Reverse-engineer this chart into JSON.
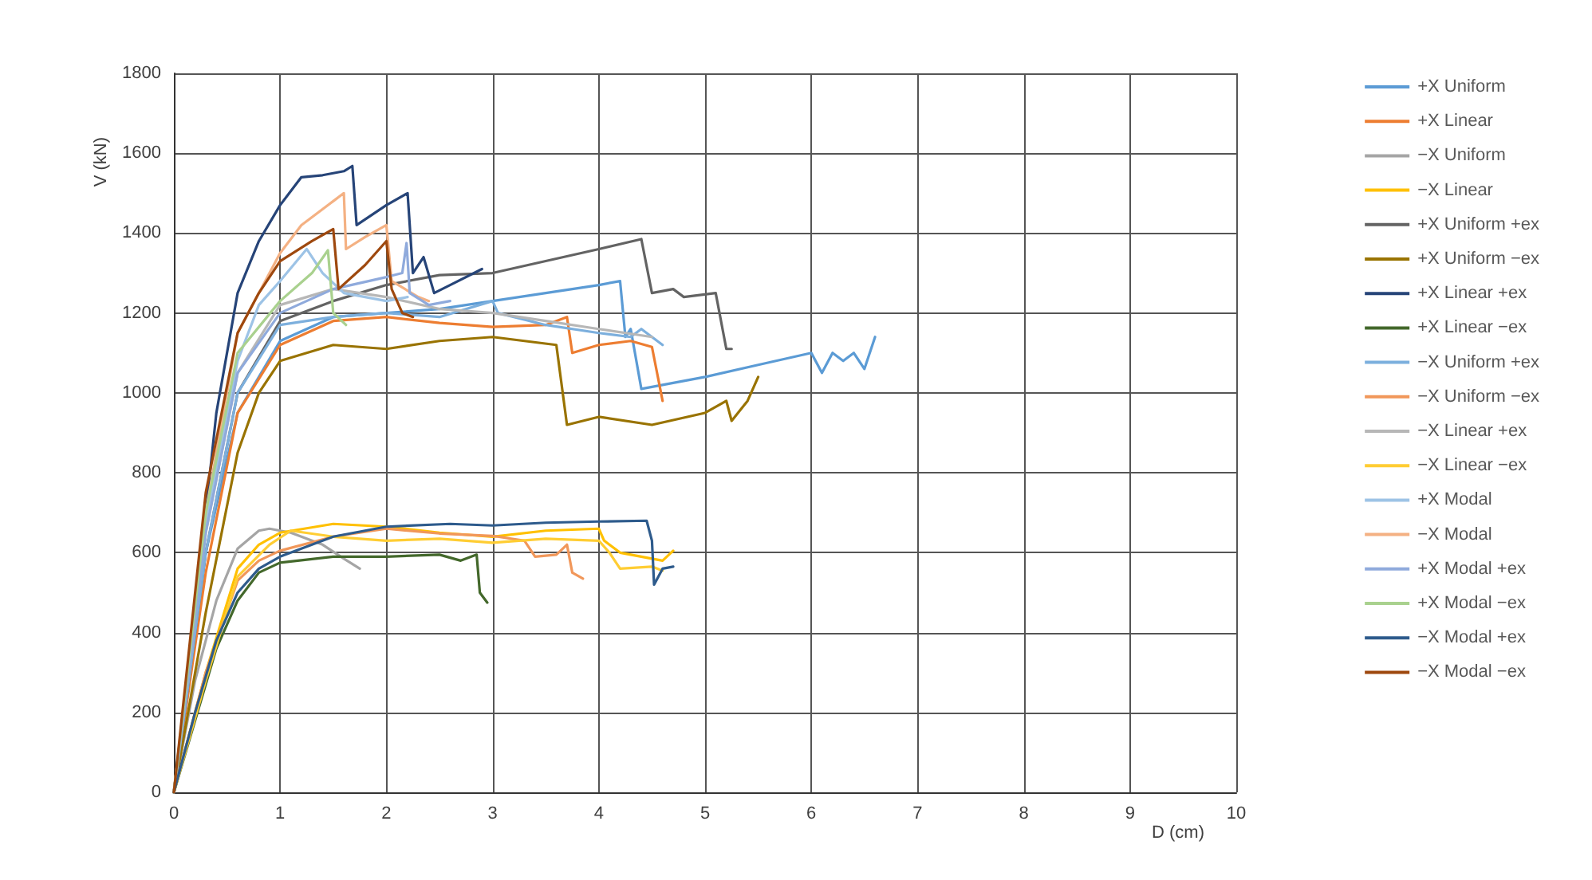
{
  "chart_data": {
    "type": "line",
    "xlabel": "D (cm)",
    "ylabel": "V (kN)",
    "xlim": [
      0,
      10
    ],
    "xticks": [
      0,
      1,
      2,
      3,
      4,
      5,
      6,
      7,
      8,
      9,
      10
    ],
    "ylim": [
      0,
      1800
    ],
    "yticks": [
      0,
      200,
      400,
      600,
      800,
      1000,
      1200,
      1400,
      1600,
      1800
    ],
    "grid": true,
    "legend": "right",
    "marker": "none",
    "line_style": "solid",
    "series": [
      {
        "name": "+X Uniform",
        "color": "#5b9bd5",
        "x": [
          0,
          0.3,
          0.6,
          1,
          1.5,
          2,
          2.5,
          3,
          3.5,
          4,
          4.2,
          4.25,
          4.3,
          4.4,
          5,
          5.5,
          6,
          6.1,
          6.2,
          6.3,
          6.4,
          6.5,
          6.6
        ],
        "values": [
          0,
          600,
          950,
          1130,
          1190,
          1200,
          1210,
          1230,
          1250,
          1270,
          1280,
          1140,
          1160,
          1010,
          1040,
          1070,
          1100,
          1050,
          1100,
          1080,
          1100,
          1060,
          1140
        ]
      },
      {
        "name": "+X Linear",
        "color": "#ed7d31",
        "x": [
          0,
          0.3,
          0.6,
          1,
          1.5,
          2,
          2.5,
          3,
          3.5,
          3.7,
          3.75,
          4,
          4.3,
          4.5,
          4.6
        ],
        "values": [
          0,
          550,
          950,
          1120,
          1180,
          1190,
          1175,
          1165,
          1170,
          1190,
          1100,
          1120,
          1130,
          1115,
          980
        ]
      },
      {
        "name": "−X Uniform",
        "color": "#a5a5a5",
        "x": [
          0,
          0.2,
          0.4,
          0.6,
          0.8,
          0.9,
          1.1,
          1.4,
          1.6,
          1.75
        ],
        "values": [
          0,
          280,
          480,
          610,
          655,
          660,
          650,
          620,
          585,
          560
        ]
      },
      {
        "name": "−X Linear",
        "color": "#ffc000",
        "x": [
          0,
          0.3,
          0.6,
          0.8,
          1,
          1.5,
          2,
          2.5,
          3,
          3.5,
          4,
          4.05,
          4.2,
          4.4,
          4.6,
          4.7
        ],
        "values": [
          0,
          300,
          560,
          620,
          650,
          672,
          665,
          650,
          640,
          655,
          660,
          630,
          600,
          590,
          580,
          605
        ]
      },
      {
        "name": "+X Uniform +ex",
        "color": "#636363",
        "x": [
          0,
          0.3,
          0.6,
          1,
          1.5,
          2,
          2.5,
          3,
          3.5,
          4,
          4.4,
          4.5,
          4.7,
          4.8,
          5.1,
          5.2,
          5.25
        ],
        "values": [
          0,
          600,
          1000,
          1180,
          1230,
          1270,
          1295,
          1300,
          1330,
          1360,
          1385,
          1250,
          1260,
          1240,
          1250,
          1110,
          1110
        ]
      },
      {
        "name": "+X Uniform −ex",
        "color": "#997300",
        "x": [
          0,
          0.3,
          0.6,
          0.8,
          1,
          1.5,
          2,
          2.5,
          3,
          3.3,
          3.6,
          3.7,
          4,
          4.5,
          5,
          5.2,
          5.25,
          5.4,
          5.5
        ],
        "values": [
          0,
          450,
          850,
          1000,
          1080,
          1120,
          1110,
          1130,
          1140,
          1130,
          1120,
          920,
          940,
          920,
          950,
          980,
          930,
          980,
          1040
        ]
      },
      {
        "name": "+X Linear +ex",
        "color": "#264478",
        "x": [
          0,
          0.2,
          0.4,
          0.6,
          0.8,
          1,
          1.2,
          1.4,
          1.6,
          1.68,
          1.72,
          2,
          2.2,
          2.25,
          2.35,
          2.45,
          2.6,
          2.9
        ],
        "values": [
          0,
          450,
          950,
          1250,
          1380,
          1470,
          1540,
          1545,
          1555,
          1568,
          1420,
          1470,
          1500,
          1300,
          1340,
          1250,
          1270,
          1310
        ]
      },
      {
        "name": "+X Linear −ex",
        "color": "#43682b",
        "x": [
          0,
          0.2,
          0.4,
          0.6,
          0.8,
          1,
          1.5,
          2,
          2.5,
          2.7,
          2.85,
          2.88,
          2.95
        ],
        "values": [
          0,
          180,
          360,
          480,
          550,
          575,
          590,
          590,
          595,
          580,
          595,
          500,
          475
        ]
      },
      {
        "name": "−X Uniform +ex",
        "color": "#7cafdd",
        "x": [
          0,
          0.3,
          0.6,
          1,
          1.5,
          2,
          2.5,
          3,
          3.05,
          3.5,
          4,
          4.3,
          4.4,
          4.6
        ],
        "values": [
          0,
          600,
          1000,
          1170,
          1190,
          1200,
          1190,
          1230,
          1200,
          1170,
          1150,
          1140,
          1160,
          1120
        ]
      },
      {
        "name": "−X Uniform −ex",
        "color": "#f1975a",
        "x": [
          0,
          0.3,
          0.6,
          0.8,
          1,
          1.5,
          2,
          2.5,
          3,
          3.3,
          3.4,
          3.6,
          3.7,
          3.75,
          3.85
        ],
        "values": [
          0,
          300,
          530,
          580,
          605,
          640,
          660,
          648,
          642,
          630,
          590,
          595,
          620,
          550,
          535
        ]
      },
      {
        "name": "−X Linear +ex",
        "color": "#b7b7b7",
        "x": [
          0,
          0.3,
          0.6,
          1,
          1.5,
          2,
          2.5,
          3,
          3.5,
          4,
          4.5
        ],
        "values": [
          0,
          650,
          1050,
          1220,
          1260,
          1240,
          1210,
          1200,
          1180,
          1160,
          1140
        ]
      },
      {
        "name": "−X Linear −ex",
        "color": "#ffcd33",
        "x": [
          0,
          0.3,
          0.6,
          0.9,
          1.1,
          1.5,
          2,
          2.5,
          3,
          3.5,
          4,
          4.1,
          4.2,
          4.5,
          4.6
        ],
        "values": [
          0,
          280,
          540,
          620,
          655,
          640,
          630,
          635,
          625,
          635,
          630,
          600,
          560,
          565,
          555
        ]
      },
      {
        "name": "+X Modal",
        "color": "#9dc3e6",
        "x": [
          0,
          0.3,
          0.6,
          0.8,
          1,
          1.25,
          1.4,
          1.6,
          2,
          2.2
        ],
        "values": [
          0,
          680,
          1080,
          1220,
          1280,
          1360,
          1300,
          1250,
          1230,
          1240
        ]
      },
      {
        "name": "−X Modal",
        "color": "#f4b183",
        "x": [
          0,
          0.3,
          0.6,
          1,
          1.2,
          1.5,
          1.6,
          1.62,
          1.8,
          2,
          2.05,
          2.3,
          2.4
        ],
        "values": [
          0,
          700,
          1150,
          1350,
          1420,
          1480,
          1500,
          1360,
          1390,
          1420,
          1280,
          1240,
          1230
        ]
      },
      {
        "name": "+X Modal +ex",
        "color": "#8faadc",
        "x": [
          0,
          0.3,
          0.6,
          1,
          1.5,
          2,
          2.15,
          2.19,
          2.22,
          2.4,
          2.6
        ],
        "values": [
          0,
          650,
          1050,
          1200,
          1260,
          1290,
          1300,
          1375,
          1250,
          1220,
          1230
        ]
      },
      {
        "name": "+X Modal −ex",
        "color": "#a9d18e",
        "x": [
          0,
          0.3,
          0.6,
          1,
          1.3,
          1.45,
          1.5,
          1.62
        ],
        "values": [
          0,
          700,
          1100,
          1230,
          1300,
          1357,
          1200,
          1170
        ]
      },
      {
        "name": "−X Modal +ex",
        "color": "#2e5b8c",
        "x": [
          0,
          0.2,
          0.4,
          0.6,
          0.8,
          1,
          1.5,
          2,
          2.6,
          3,
          3.5,
          4,
          4.45,
          4.5,
          4.52,
          4.6,
          4.7
        ],
        "values": [
          0,
          200,
          380,
          500,
          560,
          590,
          640,
          665,
          672,
          668,
          675,
          678,
          680,
          630,
          520,
          560,
          565
        ]
      },
      {
        "name": "−X Modal −ex",
        "color": "#9e480e",
        "x": [
          0,
          0.3,
          0.6,
          0.8,
          1,
          1.3,
          1.5,
          1.55,
          1.8,
          2,
          2.05,
          2.15,
          2.25
        ],
        "values": [
          0,
          750,
          1150,
          1250,
          1330,
          1380,
          1410,
          1260,
          1320,
          1380,
          1260,
          1200,
          1190
        ]
      }
    ]
  }
}
